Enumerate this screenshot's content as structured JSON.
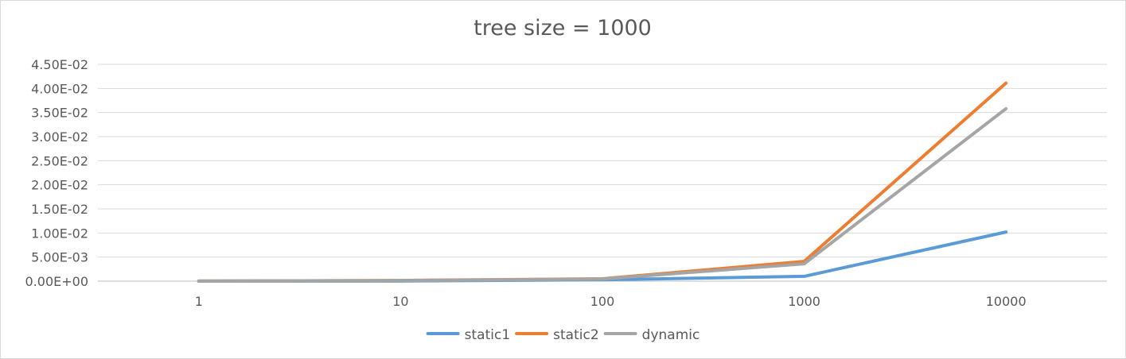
{
  "chart_data": {
    "type": "line",
    "title": "tree size = 1000",
    "xlabel": "",
    "ylabel": "",
    "categories": [
      "1",
      "10",
      "100",
      "1000",
      "10000"
    ],
    "y_ticks": [
      "0.00E+00",
      "5.00E-03",
      "1.00E-02",
      "1.50E-02",
      "2.00E-02",
      "2.50E-02",
      "3.00E-02",
      "3.50E-02",
      "4.00E-02",
      "4.50E-02"
    ],
    "ylim": [
      0,
      0.045
    ],
    "grid": true,
    "legend_position": "bottom",
    "series": [
      {
        "name": "static1",
        "color": "#5b9bd5",
        "values": [
          1e-05,
          3e-05,
          0.0003,
          0.001,
          0.0102
        ]
      },
      {
        "name": "static2",
        "color": "#ed7d31",
        "values": [
          2e-05,
          0.00015,
          0.0005,
          0.0041,
          0.0411
        ]
      },
      {
        "name": "dynamic",
        "color": "#a5a5a5",
        "values": [
          2e-05,
          0.00013,
          0.00045,
          0.0036,
          0.0358
        ]
      }
    ]
  }
}
